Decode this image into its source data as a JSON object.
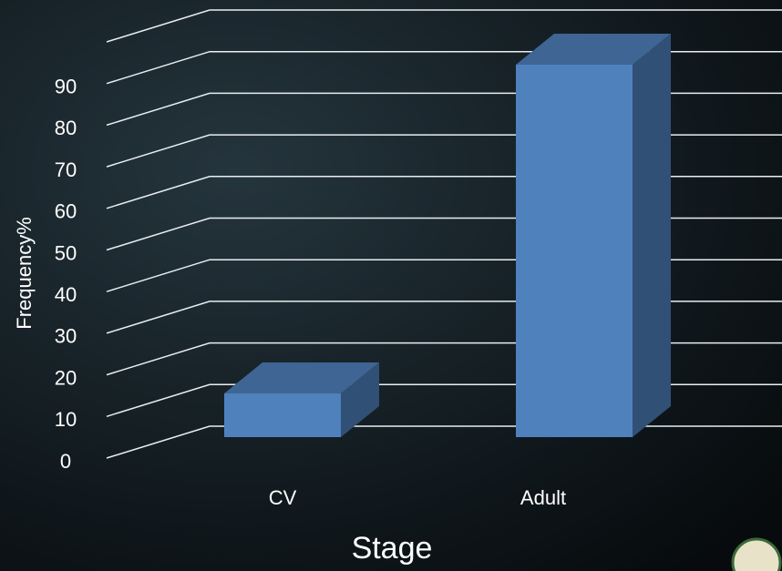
{
  "chart_data": {
    "type": "bar3d",
    "categories": [
      "CV",
      "Adult"
    ],
    "values": [
      10.5,
      89.5
    ],
    "color": "#4f81bd",
    "ylim": [
      0,
      100
    ],
    "yticks": [
      0,
      10,
      20,
      30,
      40,
      50,
      60,
      70,
      80,
      90
    ],
    "grid": true,
    "xlabel": "Stage",
    "ylabel": "Frequency%"
  }
}
